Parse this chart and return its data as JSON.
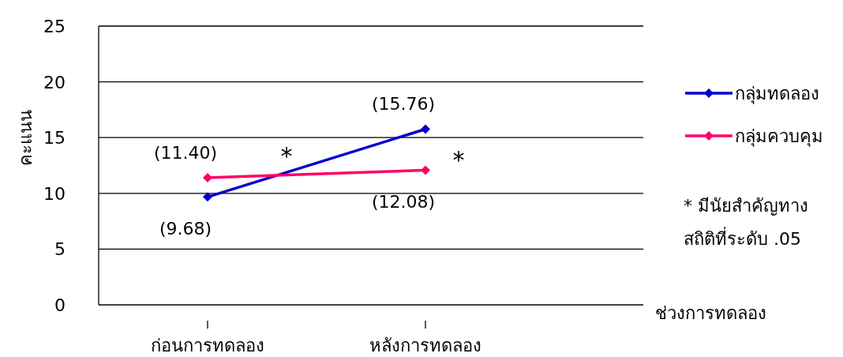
{
  "chart_data": {
    "type": "line",
    "xlabel": "ช่วงการทดลอง",
    "ylabel": "คะแนน",
    "categories": [
      "ก่อนการทดลอง",
      "หลังการทดลอง"
    ],
    "series": [
      {
        "name": "กลุ่มทดลอง",
        "color": "#0000cc",
        "values": [
          9.68,
          15.76
        ],
        "value_labels": [
          "(9.68)",
          "(15.76)"
        ]
      },
      {
        "name": "กลุ่มควบคุม",
        "color": "#ff0066",
        "values": [
          11.4,
          12.08
        ],
        "value_labels": [
          "(11.40)",
          "(12.08)"
        ]
      }
    ],
    "ylim": [
      0,
      25
    ],
    "yticks": [
      0,
      5,
      10,
      15,
      20,
      25
    ],
    "grid": "y",
    "legend": "right",
    "marker": "diamond",
    "line_style": "solid",
    "annotations": [
      "*",
      "*",
      "*  มีนัยสำคัญทางสถิติที่ระดับ .05"
    ]
  }
}
